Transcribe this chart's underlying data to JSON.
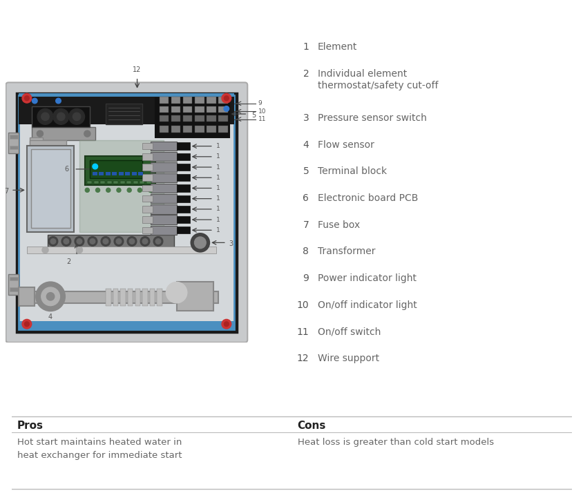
{
  "bg_color": "#ffffff",
  "figure_size": [
    8.45,
    7.11
  ],
  "dpi": 100,
  "legend_items": [
    {
      "num": "1",
      "label": "Element"
    },
    {
      "num": "2",
      "label": "Individual element\nthermostat/safety cut-off"
    },
    {
      "num": "3",
      "label": "Pressure sensor switch"
    },
    {
      "num": "4",
      "label": "Flow sensor"
    },
    {
      "num": "5",
      "label": "Terminal block"
    },
    {
      "num": "6",
      "label": "Electronic board PCB"
    },
    {
      "num": "7",
      "label": "Fuse box"
    },
    {
      "num": "8",
      "label": "Transformer"
    },
    {
      "num": "9",
      "label": "Power indicator light"
    },
    {
      "num": "10",
      "label": "On/off indicator light"
    },
    {
      "num": "11",
      "label": "On/off switch"
    },
    {
      "num": "12",
      "label": "Wire support"
    }
  ],
  "pros_header": "Pros",
  "cons_header": "Cons",
  "pros_text": "Hot start maintains heated water in\nheat exchanger for immediate start",
  "cons_text": "Heat loss is greater than cold start models",
  "text_color": "#666666",
  "header_color": "#222222",
  "number_color": "#555555",
  "arrow_color": "#444444",
  "legend_num_color": "#555555",
  "legend_text_color": "#666666"
}
